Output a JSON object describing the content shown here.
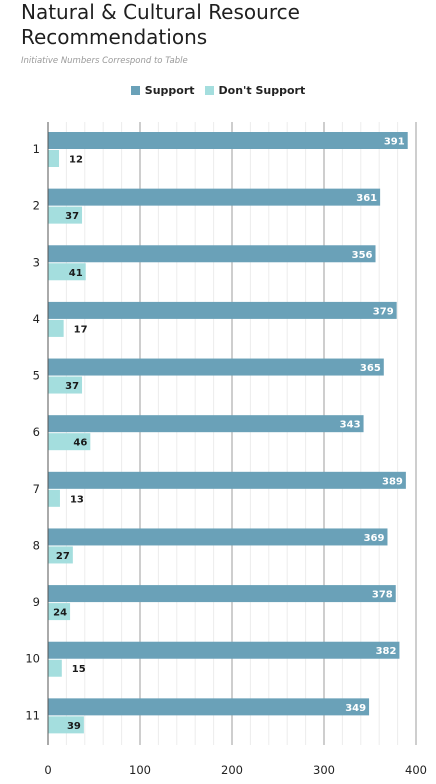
{
  "chart_data": {
    "type": "bar",
    "orientation": "horizontal",
    "title": "Natural & Cultural Resource Recommendations",
    "subtitle": "Initiative Numbers Correspond to Table",
    "categories": [
      "1",
      "2",
      "3",
      "4",
      "5",
      "6",
      "7",
      "8",
      "9",
      "10",
      "11"
    ],
    "series": [
      {
        "name": "Support",
        "color": "#6aa1b8",
        "values": [
          391,
          361,
          356,
          379,
          365,
          343,
          389,
          369,
          378,
          382,
          349
        ]
      },
      {
        "name": "Don't Support",
        "color": "#a4dede",
        "values": [
          12,
          37,
          41,
          17,
          37,
          46,
          13,
          27,
          24,
          15,
          39
        ]
      }
    ],
    "xlim": [
      0,
      400
    ],
    "xticks": [
      0,
      100,
      200,
      300,
      400
    ],
    "grid": true,
    "legend": "top-center"
  }
}
